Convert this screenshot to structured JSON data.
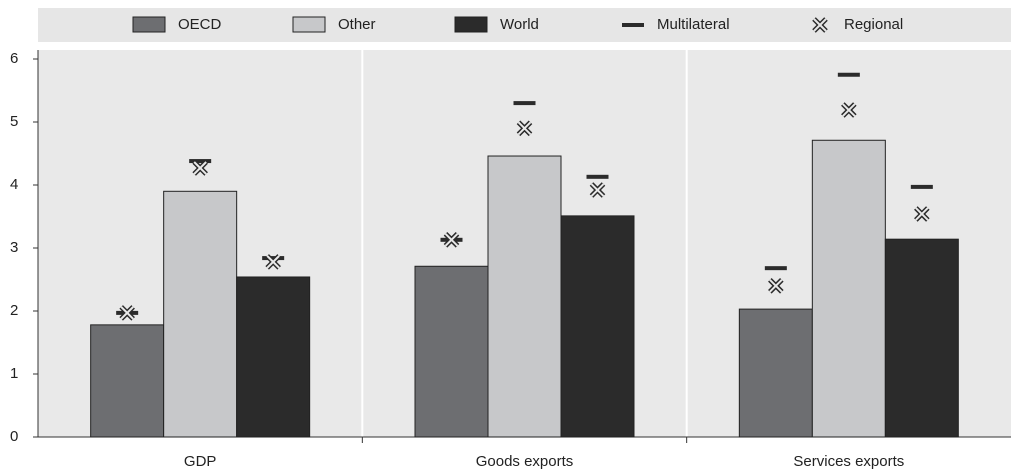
{
  "chart_data": {
    "type": "bar",
    "categories": [
      "GDP",
      "Goods exports",
      "Services exports"
    ],
    "series": [
      {
        "name": "OECD",
        "color": "#6d6e71",
        "values": [
          1.78,
          2.71,
          2.03
        ]
      },
      {
        "name": "Other",
        "color": "#c7c8ca",
        "values": [
          3.9,
          4.46,
          4.71
        ]
      },
      {
        "name": "World",
        "color": "#2b2b2b",
        "values": [
          2.54,
          3.51,
          3.14
        ]
      }
    ],
    "markers": [
      {
        "name": "Multilateral",
        "marker": "dash",
        "color": "#2b2b2b",
        "values": [
          1.97,
          4.38,
          2.84,
          3.13,
          5.3,
          4.13,
          2.68,
          5.75,
          3.97
        ]
      },
      {
        "name": "Regional",
        "marker": "cross",
        "color": "#2b2b2b",
        "values": [
          1.97,
          4.27,
          2.78,
          3.13,
          4.9,
          3.92,
          2.4,
          5.19,
          3.54
        ]
      }
    ],
    "ylim": [
      0,
      6
    ],
    "yticks": [
      0,
      1,
      2,
      3,
      4,
      5,
      6
    ],
    "grid": false
  }
}
